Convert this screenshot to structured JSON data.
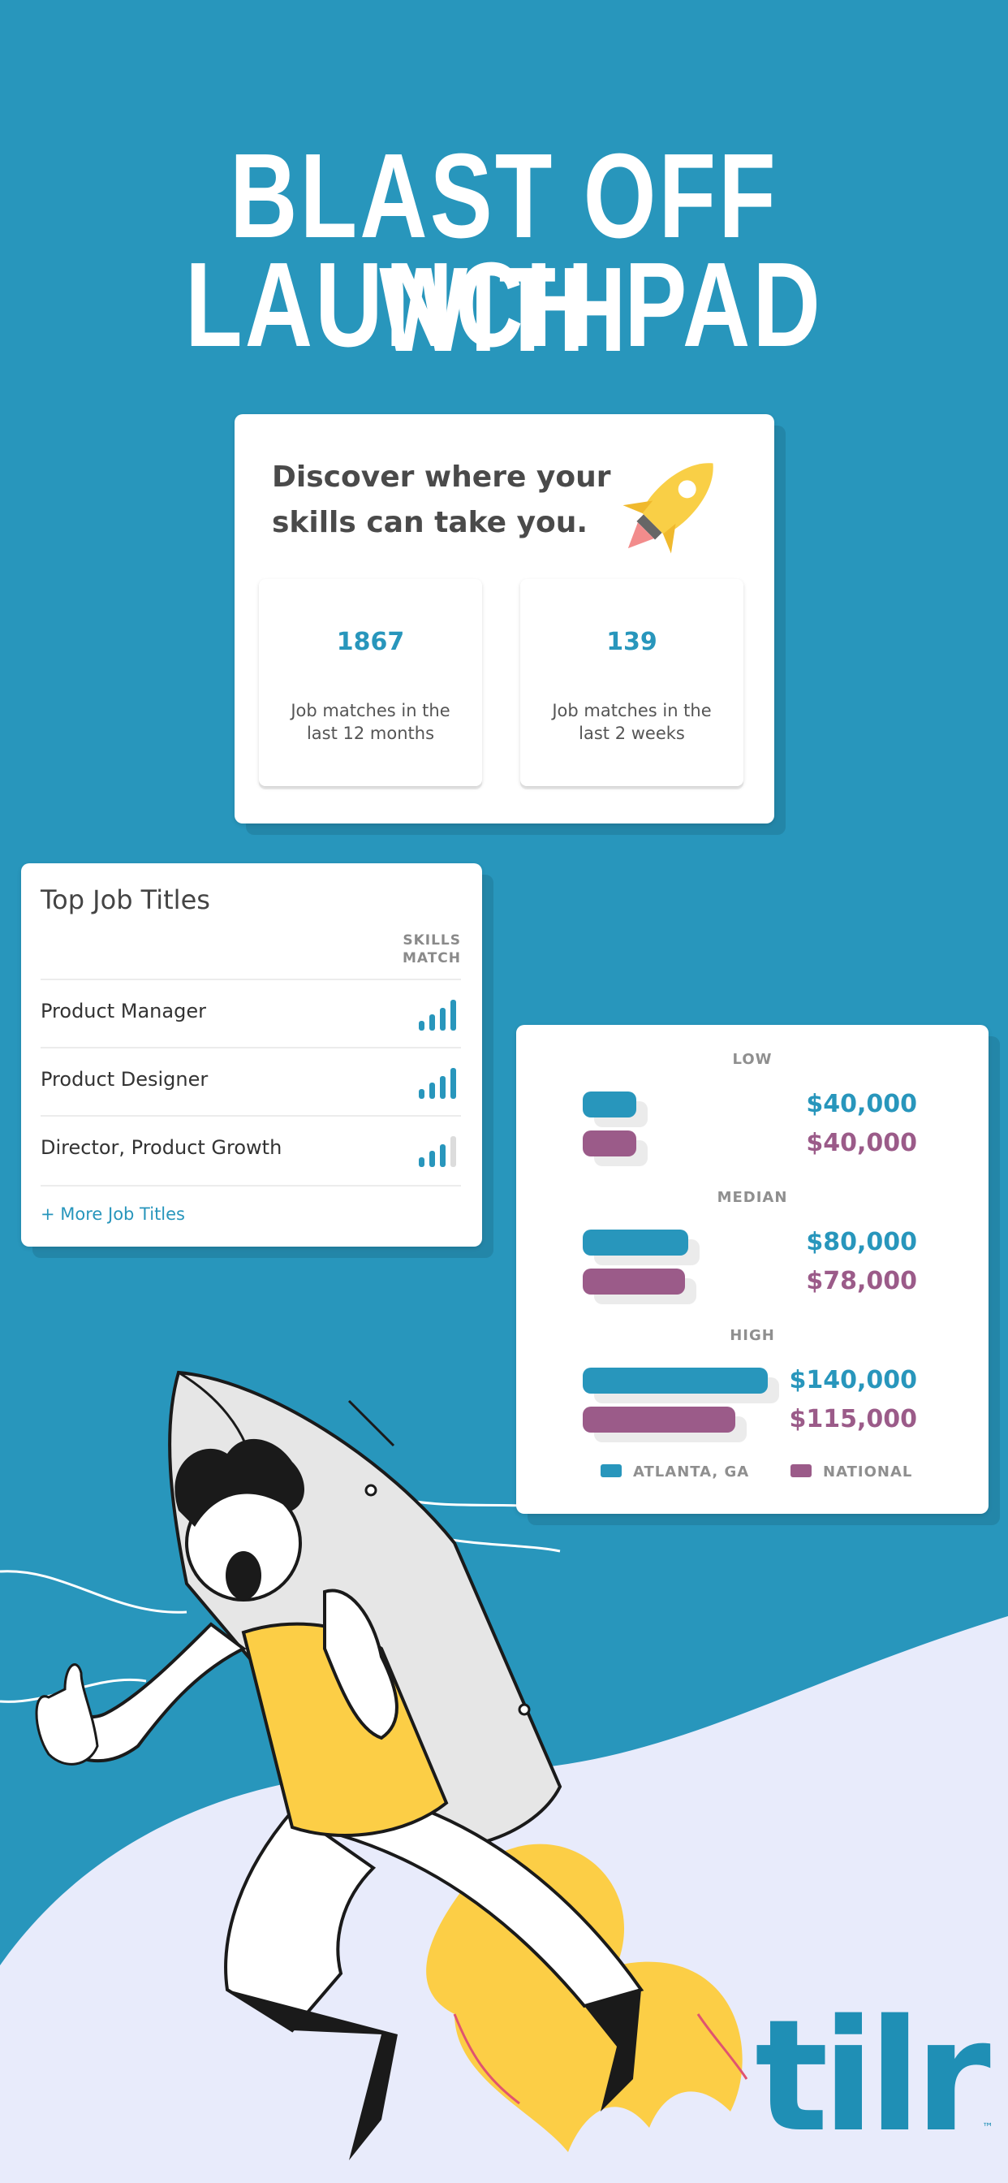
{
  "headline": {
    "line1": "BLAST OFF WITH",
    "line2": "LAUNCH PAD"
  },
  "discover": {
    "title": "Discover where your skills can take you.",
    "stats": [
      {
        "value": "1867",
        "label": "Job matches in the last 12 months"
      },
      {
        "value": "139",
        "label": "Job matches in the last 2 weeks"
      }
    ],
    "icon": "rocket-icon"
  },
  "jobs": {
    "title": "Top Job Titles",
    "col_header_1": "SKILLS",
    "col_header_2": "MATCH",
    "rows": [
      {
        "name": "Product Manager",
        "match_bars": 4
      },
      {
        "name": "Product Designer",
        "match_bars": 4
      },
      {
        "name": "Director, Product Growth",
        "match_bars": 3
      }
    ],
    "more_link": "+ More Job Titles"
  },
  "salary": {
    "groups": [
      {
        "label": "LOW",
        "local": "$40,000",
        "national": "$40,000",
        "local_value": 40000,
        "national_value": 40000
      },
      {
        "label": "MEDIAN",
        "local": "$80,000",
        "national": "$78,000",
        "local_value": 80000,
        "national_value": 78000
      },
      {
        "label": "HIGH",
        "local": "$140,000",
        "national": "$115,000",
        "local_value": 140000,
        "national_value": 115000
      }
    ],
    "legend_local": "ATLANTA, GA",
    "legend_national": "NATIONAL",
    "colors": {
      "local": "#2896bc",
      "national": "#9b5b89"
    }
  },
  "brand": {
    "logo_text": "tilr",
    "trademark": "™",
    "background": "#2896bc"
  }
}
